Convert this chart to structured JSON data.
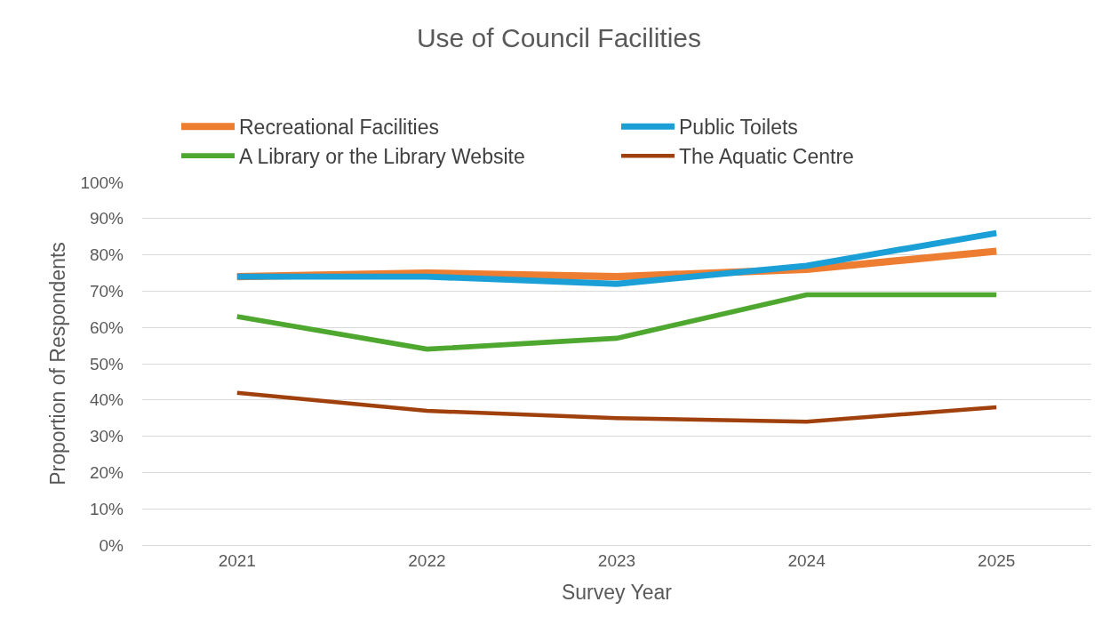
{
  "chart_data": {
    "type": "line",
    "title": "Use of Council Facilities",
    "xlabel": "Survey Year",
    "ylabel": "Proportion of Respondents",
    "categories": [
      "2021",
      "2022",
      "2023",
      "2024",
      "2025"
    ],
    "series": [
      {
        "name": "Recreational Facilities",
        "color": "#ed7d31",
        "values": [
          74,
          75,
          74,
          76,
          81
        ]
      },
      {
        "name": "Public Toilets",
        "color": "#1a9fd6",
        "values": [
          74,
          74,
          72,
          77,
          86
        ]
      },
      {
        "name": "A Library or the Library Website",
        "color": "#4ea72e",
        "values": [
          63,
          54,
          57,
          69,
          69
        ]
      },
      {
        "name": "The Aquatic Centre",
        "color": "#a0410d",
        "values": [
          42,
          37,
          35,
          34,
          38
        ]
      }
    ],
    "ylim": [
      0,
      100
    ],
    "yticks": [
      {
        "value": 0,
        "label": "0%"
      },
      {
        "value": 10,
        "label": "10%"
      },
      {
        "value": 20,
        "label": "20%"
      },
      {
        "value": 30,
        "label": "30%"
      },
      {
        "value": 40,
        "label": "40%"
      },
      {
        "value": 50,
        "label": "50%"
      },
      {
        "value": 60,
        "label": "60%"
      },
      {
        "value": 70,
        "label": "70%"
      },
      {
        "value": 80,
        "label": "80%"
      },
      {
        "value": 90,
        "label": "90%"
      },
      {
        "value": 100,
        "label": "100%"
      }
    ],
    "grid": "y",
    "legend": "top",
    "marker": "none",
    "line_style": "solid"
  }
}
